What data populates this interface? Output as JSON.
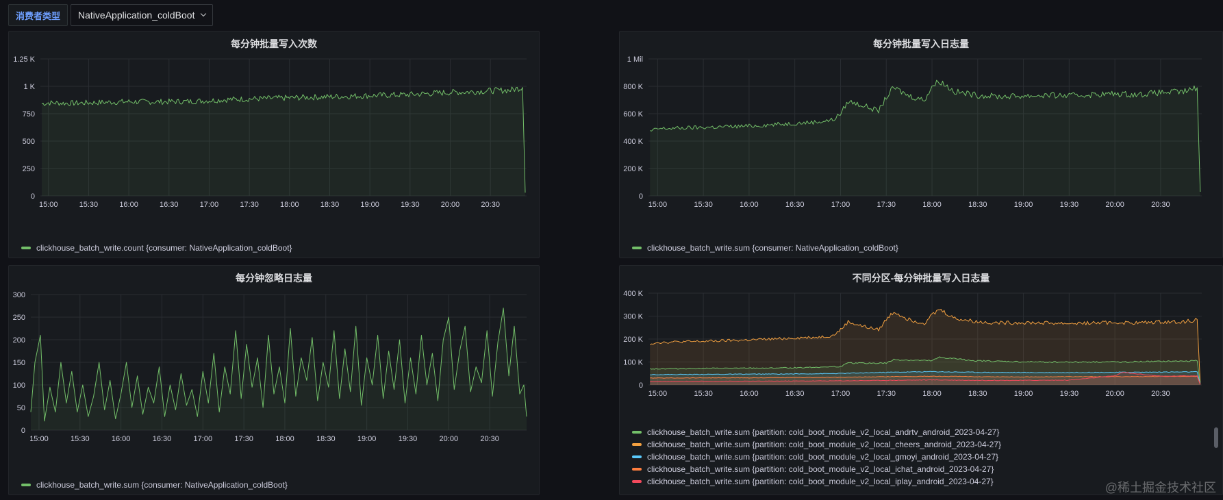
{
  "toolbar": {
    "variable_label": "消费者类型",
    "variable_value": "NativeApplication_coldBoot"
  },
  "colors": {
    "green": "#73bf69",
    "yellow": "#fade2a",
    "orange": "#f2a040",
    "blue": "#5794f2",
    "red": "#f2495c",
    "cyan": "#5ac8fa",
    "purple": "#b877d9"
  },
  "panels": [
    {
      "title": "每分钟批量写入次数",
      "legend": [
        {
          "label": "clickhouse_batch_write.count {consumer: NativeApplication_coldBoot}",
          "color": "#73bf69"
        }
      ]
    },
    {
      "title": "每分钟批量写入日志量",
      "legend": [
        {
          "label": "clickhouse_batch_write.sum {consumer: NativeApplication_coldBoot}",
          "color": "#73bf69"
        }
      ]
    },
    {
      "title": "每分钟忽略日志量",
      "legend": [
        {
          "label": "clickhouse_batch_write.sum {consumer: NativeApplication_coldBoot}",
          "color": "#73bf69"
        }
      ]
    },
    {
      "title": "不同分区-每分钟批量写入日志量",
      "legend": [
        {
          "label": "clickhouse_batch_write.sum {partition: cold_boot_module_v2_local_andrtv_android_2023-04-27}",
          "color": "#73bf69"
        },
        {
          "label": "clickhouse_batch_write.sum {partition: cold_boot_module_v2_local_cheers_android_2023-04-27}",
          "color": "#f2a040"
        },
        {
          "label": "clickhouse_batch_write.sum {partition: cold_boot_module_v2_local_gmoyi_android_2023-04-27}",
          "color": "#5ac8fa"
        },
        {
          "label": "clickhouse_batch_write.sum {partition: cold_boot_module_v2_local_ichat_android_2023-04-27}",
          "color": "#ff7f3f"
        },
        {
          "label": "clickhouse_batch_write.sum {partition: cold_boot_module_v2_local_iplay_android_2023-04-27}",
          "color": "#f2495c"
        }
      ]
    }
  ],
  "watermark": "@稀土掘金技术社区",
  "chart_data": [
    {
      "type": "line",
      "title": "每分钟批量写入次数",
      "x_ticks": [
        "15:00",
        "15:30",
        "16:00",
        "16:30",
        "17:00",
        "17:30",
        "18:00",
        "18:30",
        "19:00",
        "19:30",
        "20:00",
        "20:30"
      ],
      "y_ticks": [
        "0",
        "250",
        "500",
        "750",
        "1 K",
        "1.25 K"
      ],
      "ylim": [
        0,
        1250
      ],
      "xlim": [
        "14:54",
        "20:57"
      ],
      "series": [
        {
          "name": "clickhouse_batch_write.count {consumer: NativeApplication_coldBoot}",
          "color": "#73bf69",
          "x": [
            "14:55",
            "15:00",
            "15:15",
            "15:30",
            "15:45",
            "16:00",
            "16:15",
            "16:30",
            "16:45",
            "17:00",
            "17:15",
            "17:30",
            "17:45",
            "18:00",
            "18:15",
            "18:30",
            "18:45",
            "19:00",
            "19:15",
            "19:30",
            "19:45",
            "20:00",
            "20:15",
            "20:30",
            "20:45",
            "20:54",
            "20:56"
          ],
          "values": [
            840,
            850,
            845,
            850,
            855,
            860,
            858,
            860,
            862,
            870,
            880,
            885,
            890,
            895,
            900,
            905,
            910,
            915,
            920,
            925,
            935,
            945,
            950,
            960,
            965,
            990,
            30
          ]
        }
      ]
    },
    {
      "type": "line",
      "title": "每分钟批量写入日志量",
      "x_ticks": [
        "15:00",
        "15:30",
        "16:00",
        "16:30",
        "17:00",
        "17:30",
        "18:00",
        "18:30",
        "19:00",
        "19:30",
        "20:00",
        "20:30"
      ],
      "y_ticks": [
        "0",
        "200 K",
        "400 K",
        "600 K",
        "800 K",
        "1 Mil"
      ],
      "ylim": [
        0,
        1000000
      ],
      "xlim": [
        "14:54",
        "20:57"
      ],
      "series": [
        {
          "name": "clickhouse_batch_write.sum {consumer: NativeApplication_coldBoot}",
          "color": "#73bf69",
          "x": [
            "14:55",
            "15:00",
            "15:15",
            "15:30",
            "15:45",
            "16:00",
            "16:15",
            "16:30",
            "16:45",
            "16:55",
            "17:00",
            "17:05",
            "17:15",
            "17:25",
            "17:30",
            "17:35",
            "17:45",
            "17:55",
            "18:00",
            "18:05",
            "18:15",
            "18:30",
            "18:45",
            "19:00",
            "19:15",
            "19:30",
            "19:45",
            "20:00",
            "20:15",
            "20:30",
            "20:45",
            "20:54",
            "20:56"
          ],
          "values": [
            470,
            490,
            495,
            500,
            505,
            510,
            520,
            530,
            540,
            555,
            600,
            690,
            660,
            620,
            720,
            790,
            730,
            700,
            800,
            840,
            760,
            735,
            725,
            730,
            735,
            730,
            740,
            745,
            740,
            755,
            760,
            790,
            30
          ]
        }
      ]
    },
    {
      "type": "line",
      "title": "每分钟忽略日志量",
      "x_ticks": [
        "15:00",
        "15:30",
        "16:00",
        "16:30",
        "17:00",
        "17:30",
        "18:00",
        "18:30",
        "19:00",
        "19:30",
        "20:00",
        "20:30"
      ],
      "y_ticks": [
        "0",
        "50",
        "100",
        "150",
        "200",
        "250",
        "300"
      ],
      "ylim": [
        0,
        300
      ],
      "xlim": [
        "14:54",
        "20:57"
      ],
      "series": [
        {
          "name": "clickhouse_batch_write.sum {consumer: NativeApplication_coldBoot}",
          "color": "#73bf69",
          "x": [
            "14:54",
            "14:57",
            "15:01",
            "15:04",
            "15:08",
            "15:12",
            "15:16",
            "15:20",
            "15:24",
            "15:28",
            "15:32",
            "15:36",
            "15:40",
            "15:44",
            "15:48",
            "15:52",
            "15:56",
            "16:00",
            "16:04",
            "16:08",
            "16:12",
            "16:16",
            "16:20",
            "16:24",
            "16:28",
            "16:32",
            "16:36",
            "16:40",
            "16:44",
            "16:48",
            "16:52",
            "16:56",
            "17:00",
            "17:04",
            "17:08",
            "17:12",
            "17:16",
            "17:20",
            "17:24",
            "17:28",
            "17:32",
            "17:36",
            "17:40",
            "17:44",
            "17:48",
            "17:52",
            "17:56",
            "18:00",
            "18:04",
            "18:08",
            "18:12",
            "18:16",
            "18:20",
            "18:24",
            "18:28",
            "18:32",
            "18:36",
            "18:40",
            "18:44",
            "18:48",
            "18:52",
            "18:56",
            "19:00",
            "19:04",
            "19:08",
            "19:12",
            "19:16",
            "19:20",
            "19:24",
            "19:28",
            "19:32",
            "19:36",
            "19:40",
            "19:44",
            "19:48",
            "19:52",
            "19:56",
            "20:00",
            "20:04",
            "20:08",
            "20:12",
            "20:16",
            "20:20",
            "20:24",
            "20:28",
            "20:32",
            "20:36",
            "20:40",
            "20:44",
            "20:48",
            "20:52",
            "20:55",
            "20:57"
          ],
          "values": [
            40,
            150,
            210,
            20,
            95,
            40,
            150,
            60,
            130,
            40,
            100,
            30,
            75,
            150,
            45,
            110,
            25,
            80,
            150,
            50,
            120,
            35,
            95,
            60,
            140,
            30,
            100,
            45,
            125,
            55,
            90,
            30,
            130,
            60,
            170,
            40,
            140,
            80,
            220,
            70,
            190,
            95,
            160,
            50,
            210,
            80,
            140,
            60,
            225,
            75,
            160,
            110,
            205,
            65,
            150,
            95,
            220,
            70,
            180,
            85,
            230,
            55,
            160,
            100,
            210,
            70,
            175,
            90,
            200,
            60,
            160,
            80,
            210,
            100,
            170,
            65,
            200,
            250,
            90,
            175,
            230,
            85,
            140,
            105,
            220,
            75,
            195,
            270,
            120,
            230,
            80,
            100,
            30
          ]
        }
      ]
    },
    {
      "type": "area",
      "title": "不同分区-每分钟批量写入日志量",
      "x_ticks": [
        "15:00",
        "15:30",
        "16:00",
        "16:30",
        "17:00",
        "17:30",
        "18:00",
        "18:30",
        "19:00",
        "19:30",
        "20:00",
        "20:30"
      ],
      "y_ticks": [
        "0",
        "100 K",
        "200 K",
        "300 K",
        "400 K"
      ],
      "ylim": [
        0,
        400000
      ],
      "xlim": [
        "14:54",
        "20:57"
      ],
      "series": [
        {
          "name": "clickhouse_batch_write.sum {partition: cold_boot_module_v2_local_cheers_android_2023-04-27}",
          "color": "#f2a040",
          "x": [
            "14:55",
            "15:00",
            "15:15",
            "15:30",
            "15:45",
            "16:00",
            "16:15",
            "16:30",
            "16:45",
            "16:55",
            "17:00",
            "17:05",
            "17:15",
            "17:25",
            "17:30",
            "17:35",
            "17:45",
            "17:55",
            "18:00",
            "18:05",
            "18:15",
            "18:30",
            "18:45",
            "19:00",
            "19:15",
            "19:30",
            "19:45",
            "20:00",
            "20:15",
            "20:30",
            "20:45",
            "20:54",
            "20:56"
          ],
          "values": [
            180,
            185,
            188,
            190,
            193,
            196,
            200,
            205,
            208,
            215,
            240,
            275,
            255,
            240,
            285,
            320,
            285,
            270,
            305,
            330,
            290,
            275,
            270,
            272,
            270,
            268,
            270,
            272,
            270,
            275,
            275,
            285,
            10
          ]
        },
        {
          "name": "clickhouse_batch_write.sum {partition: cold_boot_module_v2_local_andrtv_android_2023-04-27}",
          "color": "#73bf69",
          "x": [
            "14:55",
            "15:30",
            "16:00",
            "16:30",
            "17:00",
            "17:05",
            "17:30",
            "17:35",
            "18:00",
            "18:05",
            "18:30",
            "19:00",
            "19:30",
            "20:00",
            "20:30",
            "20:54",
            "20:56"
          ],
          "values": [
            70,
            72,
            73,
            75,
            80,
            95,
            95,
            110,
            105,
            120,
            105,
            100,
            100,
            100,
            102,
            105,
            5
          ]
        },
        {
          "name": "clickhouse_batch_write.sum {partition: cold_boot_module_v2_local_gmoyi_android_2023-04-27}",
          "color": "#5ac8fa",
          "x": [
            "14:55",
            "15:30",
            "16:00",
            "16:30",
            "17:00",
            "17:30",
            "18:00",
            "18:30",
            "19:00",
            "19:30",
            "20:00",
            "20:30",
            "20:54",
            "20:56"
          ],
          "values": [
            45,
            46,
            47,
            48,
            50,
            55,
            58,
            55,
            54,
            54,
            55,
            56,
            57,
            3
          ]
        },
        {
          "name": "clickhouse_batch_write.sum {partition: cold_boot_module_v2_local_ichat_android_2023-04-27}",
          "color": "#ff7f3f",
          "x": [
            "14:55",
            "15:30",
            "16:00",
            "16:30",
            "17:00",
            "17:30",
            "18:00",
            "18:30",
            "19:00",
            "19:30",
            "20:00",
            "20:30",
            "20:54",
            "20:56"
          ],
          "values": [
            30,
            31,
            31,
            32,
            33,
            36,
            38,
            36,
            35,
            36,
            36,
            37,
            38,
            2
          ]
        },
        {
          "name": "clickhouse_batch_write.sum {partition: cold_boot_module_v2_local_iplay_android_2023-04-27}",
          "color": "#f2495c",
          "x": [
            "14:55",
            "15:30",
            "16:00",
            "16:30",
            "17:00",
            "17:30",
            "18:00",
            "18:30",
            "19:00",
            "19:30",
            "20:00",
            "20:05",
            "20:30",
            "20:54",
            "20:56"
          ],
          "values": [
            15,
            16,
            16,
            17,
            18,
            20,
            22,
            20,
            20,
            21,
            40,
            55,
            38,
            40,
            2
          ]
        }
      ]
    }
  ]
}
